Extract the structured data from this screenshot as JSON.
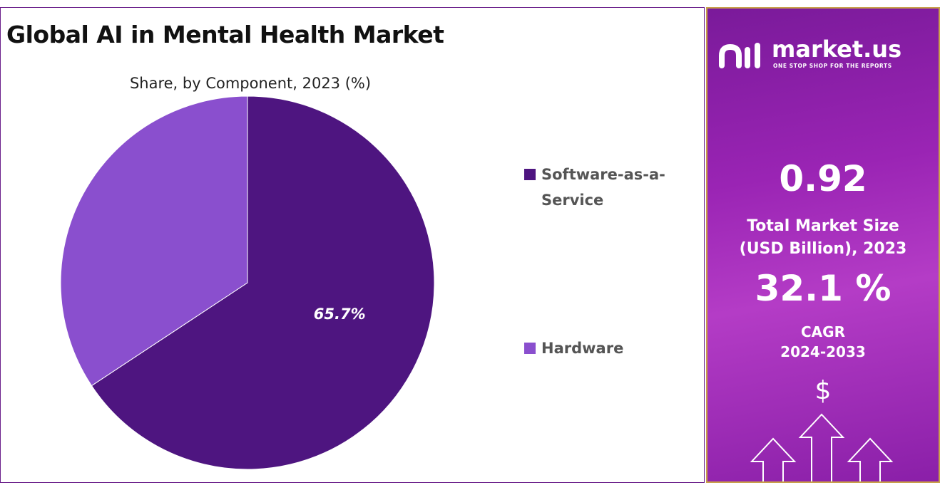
{
  "header": {
    "title": "Global AI in Mental Health Market",
    "subtitle": "Share, by Component, 2023 (%)"
  },
  "chart_data": {
    "type": "pie",
    "title": "Global AI in Mental Health Market",
    "subtitle": "Share, by Component, 2023 (%)",
    "categories": [
      "Software-as-a-Service",
      "Hardware"
    ],
    "values": [
      65.7,
      34.3
    ],
    "colors": [
      "#4e1580",
      "#8a4fce"
    ],
    "data_labels": [
      "65.7%",
      ""
    ],
    "legend_position": "right"
  },
  "legend": {
    "items": [
      {
        "label_line1": "Software-as-a-",
        "label_line2": "Service",
        "color": "#4e1580"
      },
      {
        "label_line1": "Hardware",
        "color": "#8a4fce"
      }
    ]
  },
  "sidebar": {
    "brand_name": "market.us",
    "brand_tagline": "ONE STOP SHOP FOR THE REPORTS",
    "market_size_value": "0.92",
    "market_size_label_line1": "Total Market Size",
    "market_size_label_line2": "(USD Billion), 2023",
    "cagr_value": "32.1 %",
    "cagr_label_line1": "CAGR",
    "cagr_label_line2": "2024-2033",
    "currency_symbol": "$"
  }
}
